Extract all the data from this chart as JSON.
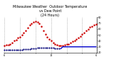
{
  "title": "Milwaukee Weather  Outdoor Temperature\nvs Dew Point\n(24 Hours)",
  "title_fontsize": 3.5,
  "background_color": "#ffffff",
  "temp_values": [
    32,
    33,
    33,
    35,
    37,
    40,
    42,
    45,
    47,
    50,
    54,
    58,
    62,
    67,
    70,
    72,
    73,
    72,
    70,
    65,
    58,
    52,
    47,
    43,
    40,
    37,
    35,
    33,
    32,
    32,
    32,
    33,
    34,
    35,
    37,
    39,
    41,
    43,
    45,
    48,
    51,
    54,
    57,
    60,
    63,
    65,
    67,
    68
  ],
  "dew_values": [
    25,
    25,
    25,
    25,
    25,
    25,
    25,
    25,
    25,
    25,
    26,
    26,
    26,
    26,
    27,
    27,
    27,
    28,
    28,
    28,
    28,
    28,
    28,
    28,
    28,
    28,
    27,
    27,
    27,
    27,
    30,
    30,
    30,
    30,
    30,
    30,
    30,
    30,
    30,
    30,
    30,
    30,
    30,
    30,
    30,
    30,
    30,
    30
  ],
  "dew_line_start": 29,
  "temp_color": "#cc0000",
  "dew_color_dot": "#000077",
  "dew_color_line": "#0000cc",
  "ylim": [
    20,
    80
  ],
  "yticks": [
    20,
    30,
    40,
    50,
    60,
    70,
    80
  ],
  "ytick_labels": [
    "20",
    "30",
    "40",
    "50",
    "60",
    "70",
    "80"
  ],
  "grid_color": "#888888",
  "n_points": 48,
  "xlim": [
    -0.5,
    47.5
  ],
  "xtick_positions": [
    0,
    8,
    16,
    24,
    32,
    40,
    47
  ],
  "xtick_labels": [
    "6",
    "",
    "",
    "12",
    "",
    "",
    "6"
  ]
}
